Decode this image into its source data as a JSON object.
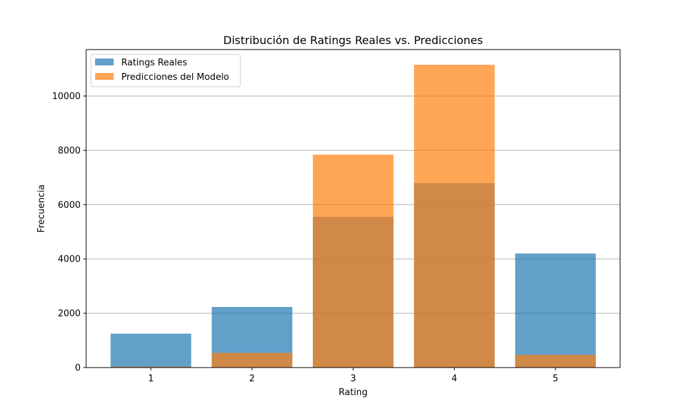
{
  "chart_data": {
    "type": "bar",
    "title": "Distribución de Ratings Reales vs. Predicciones",
    "xlabel": "Rating",
    "ylabel": "Frecuencia",
    "categories": [
      "1",
      "2",
      "3",
      "4",
      "5"
    ],
    "series": [
      {
        "name": "Ratings Reales",
        "values": [
          1250,
          2230,
          5550,
          6790,
          4200
        ],
        "color": "#1f77b4",
        "alpha": 0.7
      },
      {
        "name": "Predicciones del Modelo",
        "values": [
          30,
          540,
          7840,
          11150,
          470
        ],
        "color": "#ff7f0e",
        "alpha": 0.7
      }
    ],
    "ylim": [
      0,
      11710
    ],
    "yticks": [
      0,
      2000,
      4000,
      6000,
      8000,
      10000
    ],
    "grid": "y",
    "legend_position": "top-left",
    "bar_mode": "overlay"
  }
}
